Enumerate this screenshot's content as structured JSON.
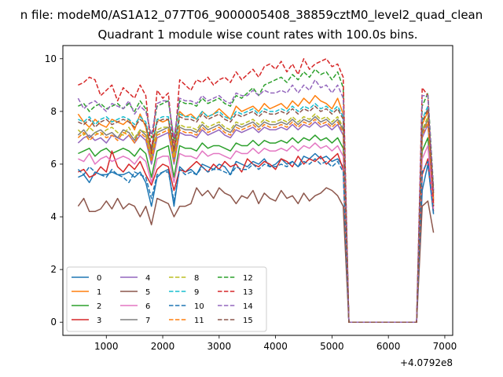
{
  "suptitle": "n file: modeM0/AS1A12_077T06_9000005408_38859cztM0_level2_quad_clean",
  "chart_data": {
    "type": "line",
    "title": "Quadrant 1 module wise count rates with 100.0s bins.",
    "xlabel": "",
    "ylabel": "",
    "x_offset_label": "+4.0792e8",
    "xlim": [
      230,
      7140
    ],
    "ylim": [
      -0.5,
      10.5
    ],
    "x_ticks": [
      1000,
      2000,
      3000,
      4000,
      5000,
      6000,
      7000
    ],
    "x_tick_labels": [
      "1000",
      "2000",
      "3000",
      "4000",
      "5000",
      "6000",
      "7000"
    ],
    "y_ticks": [
      0,
      2,
      4,
      6,
      8,
      10
    ],
    "y_tick_labels": [
      "0",
      "2",
      "4",
      "6",
      "8",
      "10"
    ],
    "grid": false,
    "legend_position": "lower-left",
    "legend_columns": 4,
    "x": [
      500,
      600,
      700,
      800,
      900,
      1000,
      1100,
      1200,
      1300,
      1400,
      1500,
      1600,
      1700,
      1800,
      1900,
      2000,
      2100,
      2200,
      2300,
      2400,
      2500,
      2600,
      2700,
      2800,
      2900,
      3000,
      3100,
      3200,
      3300,
      3400,
      3500,
      3600,
      3700,
      3800,
      3900,
      4000,
      4100,
      4200,
      4300,
      4400,
      4500,
      4600,
      4700,
      4800,
      4900,
      5000,
      5100,
      5200,
      5300,
      5400,
      5500,
      5600,
      5700,
      5800,
      5900,
      6000,
      6100,
      6200,
      6300,
      6400,
      6500,
      6600,
      6700,
      6800
    ],
    "series": [
      {
        "name": "0",
        "color": "#1f77b4",
        "dash": "solid",
        "values": [
          5.5,
          5.6,
          5.3,
          5.7,
          5.6,
          5.6,
          5.7,
          5.6,
          5.6,
          5.7,
          5.5,
          5.7,
          5.3,
          4.4,
          5.5,
          5.7,
          5.8,
          4.4,
          5.9,
          5.7,
          5.8,
          5.6,
          6.0,
          5.9,
          5.8,
          6.0,
          5.9,
          5.6,
          6.1,
          6.0,
          5.9,
          6.1,
          6.0,
          6.2,
          5.9,
          6.0,
          6.2,
          6.0,
          6.1,
          5.9,
          6.3,
          6.2,
          6.4,
          6.2,
          6.3,
          6.1,
          6.2,
          5.9,
          0,
          0,
          0,
          0,
          0,
          0,
          0,
          0,
          0,
          0,
          0,
          0,
          0,
          5.0,
          6.0,
          4.1
        ]
      },
      {
        "name": "1",
        "color": "#ff7f0e",
        "dash": "solid",
        "values": [
          7.9,
          7.6,
          7.4,
          7.7,
          7.5,
          7.4,
          7.7,
          7.6,
          7.5,
          7.7,
          7.3,
          7.9,
          7.4,
          6.4,
          7.7,
          7.6,
          7.7,
          6.4,
          8.0,
          7.8,
          7.9,
          7.7,
          8.0,
          7.8,
          7.9,
          8.1,
          7.9,
          7.7,
          8.2,
          8.0,
          8.1,
          8.2,
          8.0,
          8.3,
          8.1,
          8.2,
          8.3,
          8.1,
          8.4,
          8.2,
          8.5,
          8.3,
          8.6,
          8.4,
          8.3,
          8.1,
          8.5,
          7.9,
          0,
          0,
          0,
          0,
          0,
          0,
          0,
          0,
          0,
          0,
          0,
          0,
          0,
          7.5,
          8.0,
          4.5
        ]
      },
      {
        "name": "2",
        "color": "#2ca02c",
        "dash": "solid",
        "values": [
          6.4,
          6.5,
          6.6,
          6.3,
          6.5,
          6.6,
          6.4,
          6.5,
          6.6,
          6.5,
          6.3,
          6.6,
          6.4,
          5.5,
          6.5,
          6.6,
          6.7,
          5.5,
          6.7,
          6.6,
          6.6,
          6.5,
          6.8,
          6.6,
          6.7,
          6.7,
          6.6,
          6.5,
          6.8,
          6.7,
          6.7,
          6.9,
          6.7,
          6.9,
          6.8,
          6.8,
          6.9,
          6.8,
          7.0,
          6.8,
          7.0,
          6.9,
          7.1,
          6.9,
          7.0,
          6.8,
          7.0,
          6.6,
          0,
          0,
          0,
          0,
          0,
          0,
          0,
          0,
          0,
          0,
          0,
          0,
          0,
          6.5,
          7.0,
          4.4
        ]
      },
      {
        "name": "3",
        "color": "#d62728",
        "dash": "solid",
        "values": [
          5.7,
          5.8,
          5.5,
          5.6,
          5.9,
          5.7,
          6.5,
          5.9,
          5.7,
          6.0,
          5.8,
          6.1,
          5.6,
          5.2,
          5.8,
          6.0,
          5.9,
          5.0,
          5.8,
          5.7,
          5.9,
          6.1,
          5.9,
          5.7,
          6.0,
          5.8,
          6.1,
          5.9,
          6.0,
          5.7,
          6.2,
          6.0,
          5.9,
          6.1,
          6.0,
          5.8,
          6.2,
          6.1,
          5.9,
          6.3,
          6.0,
          6.2,
          6.1,
          6.3,
          6.0,
          6.2,
          6.4,
          5.8,
          0,
          0,
          0,
          0,
          0,
          0,
          0,
          0,
          0,
          0,
          0,
          0,
          0,
          5.6,
          6.2,
          4.2
        ]
      },
      {
        "name": "4",
        "color": "#9467bd",
        "dash": "solid",
        "values": [
          6.8,
          7.0,
          7.1,
          6.9,
          7.0,
          6.8,
          7.1,
          7.0,
          6.9,
          7.1,
          6.8,
          7.1,
          6.9,
          6.0,
          7.0,
          7.1,
          7.2,
          6.0,
          7.2,
          7.1,
          7.1,
          7.0,
          7.3,
          7.1,
          7.2,
          7.3,
          7.1,
          7.0,
          7.3,
          7.2,
          7.3,
          7.4,
          7.2,
          7.4,
          7.3,
          7.3,
          7.4,
          7.3,
          7.5,
          7.3,
          7.5,
          7.4,
          7.6,
          7.4,
          7.5,
          7.3,
          7.5,
          7.1,
          0,
          0,
          0,
          0,
          0,
          0,
          0,
          0,
          0,
          0,
          0,
          0,
          0,
          7.0,
          7.5,
          4.6
        ]
      },
      {
        "name": "5",
        "color": "#8c564b",
        "dash": "solid",
        "values": [
          4.4,
          4.7,
          4.2,
          4.2,
          4.3,
          4.6,
          4.3,
          4.7,
          4.3,
          4.5,
          4.4,
          4.0,
          4.4,
          3.7,
          4.7,
          4.6,
          4.5,
          4.0,
          4.4,
          4.4,
          4.5,
          5.1,
          4.8,
          5.0,
          4.7,
          5.1,
          4.9,
          4.8,
          4.5,
          4.8,
          4.7,
          5.0,
          4.5,
          4.9,
          4.7,
          4.6,
          5.0,
          4.7,
          4.8,
          4.5,
          4.9,
          4.6,
          4.8,
          4.9,
          5.1,
          5.0,
          4.8,
          4.4,
          0,
          0,
          0,
          0,
          0,
          0,
          0,
          0,
          0,
          0,
          0,
          0,
          0,
          4.4,
          4.6,
          3.4
        ]
      },
      {
        "name": "6",
        "color": "#e377c2",
        "dash": "solid",
        "values": [
          6.2,
          6.1,
          6.4,
          6.0,
          6.2,
          6.3,
          6.1,
          6.2,
          6.3,
          6.2,
          6.0,
          6.3,
          6.1,
          5.3,
          6.2,
          6.3,
          6.3,
          5.3,
          6.4,
          6.3,
          6.3,
          6.2,
          6.5,
          6.3,
          6.4,
          6.4,
          6.3,
          6.2,
          6.5,
          6.4,
          6.4,
          6.6,
          6.4,
          6.6,
          6.5,
          6.5,
          6.6,
          6.5,
          6.7,
          6.5,
          6.7,
          6.6,
          6.8,
          6.6,
          6.7,
          6.5,
          6.7,
          6.3,
          0,
          0,
          0,
          0,
          0,
          0,
          0,
          0,
          0,
          0,
          0,
          0,
          0,
          6.2,
          6.7,
          4.3
        ]
      },
      {
        "name": "7",
        "color": "#7f7f7f",
        "dash": "solid",
        "values": [
          7.1,
          7.3,
          7.0,
          7.2,
          7.3,
          7.1,
          7.2,
          7.0,
          7.3,
          7.2,
          6.9,
          7.3,
          7.1,
          6.2,
          7.2,
          7.3,
          7.4,
          6.2,
          7.4,
          7.3,
          7.3,
          7.2,
          7.5,
          7.3,
          7.4,
          7.5,
          7.3,
          7.2,
          7.5,
          7.4,
          7.5,
          7.6,
          7.4,
          7.6,
          7.5,
          7.5,
          7.6,
          7.5,
          7.7,
          7.5,
          7.7,
          7.6,
          7.8,
          7.6,
          7.7,
          7.5,
          7.7,
          7.3,
          0,
          0,
          0,
          0,
          0,
          0,
          0,
          0,
          0,
          0,
          0,
          0,
          0,
          7.2,
          7.7,
          4.7
        ]
      },
      {
        "name": "8",
        "color": "#bcbd22",
        "dash": "dashed",
        "values": [
          7.3,
          7.1,
          7.4,
          7.2,
          7.1,
          7.3,
          7.4,
          7.2,
          7.1,
          7.4,
          7.0,
          7.3,
          7.2,
          6.3,
          7.3,
          7.4,
          7.4,
          6.3,
          7.5,
          7.4,
          7.4,
          7.3,
          7.6,
          7.4,
          7.5,
          7.6,
          7.4,
          7.3,
          7.6,
          7.5,
          7.6,
          7.7,
          7.5,
          7.7,
          7.6,
          7.6,
          7.7,
          7.6,
          7.8,
          7.6,
          7.8,
          7.7,
          7.9,
          7.7,
          7.8,
          7.6,
          7.8,
          7.4,
          0,
          0,
          0,
          0,
          0,
          0,
          0,
          0,
          0,
          0,
          0,
          0,
          0,
          7.3,
          7.8,
          4.8
        ]
      },
      {
        "name": "9",
        "color": "#17becf",
        "dash": "dashed",
        "values": [
          7.7,
          7.6,
          7.8,
          7.5,
          7.7,
          7.8,
          7.6,
          7.7,
          7.8,
          7.7,
          7.5,
          7.8,
          7.6,
          6.6,
          7.7,
          7.8,
          7.8,
          6.6,
          7.9,
          7.8,
          7.8,
          7.7,
          8.0,
          7.8,
          7.9,
          8.0,
          7.8,
          7.7,
          8.0,
          7.9,
          8.0,
          8.1,
          7.9,
          8.1,
          8.0,
          8.0,
          8.1,
          8.0,
          8.2,
          8.0,
          8.2,
          8.1,
          8.3,
          8.1,
          8.2,
          8.0,
          8.2,
          7.8,
          0,
          0,
          0,
          0,
          0,
          0,
          0,
          0,
          0,
          0,
          0,
          0,
          0,
          7.7,
          8.2,
          5.0
        ]
      },
      {
        "name": "10",
        "color": "#1f77b4",
        "dash": "dashed",
        "values": [
          5.8,
          5.6,
          5.9,
          5.7,
          5.6,
          5.5,
          5.8,
          5.6,
          5.5,
          5.3,
          5.7,
          5.6,
          5.5,
          4.7,
          5.6,
          5.7,
          5.7,
          4.6,
          5.8,
          5.6,
          5.7,
          5.6,
          5.9,
          5.7,
          5.8,
          5.8,
          5.7,
          5.6,
          5.9,
          5.8,
          5.8,
          6.0,
          5.8,
          6.0,
          5.9,
          5.9,
          6.0,
          5.9,
          6.1,
          5.9,
          6.1,
          6.0,
          6.2,
          6.0,
          6.1,
          5.9,
          6.1,
          5.7,
          0,
          0,
          0,
          0,
          0,
          0,
          0,
          0,
          0,
          0,
          0,
          0,
          0,
          5.7,
          6.1,
          4.1
        ]
      },
      {
        "name": "11",
        "color": "#ff7f0e",
        "dash": "dashed",
        "values": [
          7.0,
          7.2,
          6.9,
          7.1,
          7.2,
          7.0,
          7.1,
          6.9,
          7.2,
          7.1,
          6.8,
          7.2,
          7.0,
          6.1,
          7.1,
          7.2,
          7.3,
          6.1,
          7.3,
          7.2,
          7.2,
          7.1,
          7.4,
          7.2,
          7.3,
          7.4,
          7.2,
          7.1,
          7.4,
          7.3,
          7.4,
          7.5,
          7.3,
          7.5,
          7.4,
          7.4,
          7.5,
          7.4,
          7.6,
          7.4,
          7.6,
          7.5,
          7.7,
          7.5,
          7.6,
          7.4,
          7.6,
          7.2,
          0,
          0,
          0,
          0,
          0,
          0,
          0,
          0,
          0,
          0,
          0,
          0,
          0,
          7.1,
          7.6,
          4.6
        ]
      },
      {
        "name": "12",
        "color": "#2ca02c",
        "dash": "dashed",
        "values": [
          8.2,
          8.3,
          8.0,
          8.2,
          8.3,
          8.1,
          8.2,
          8.3,
          8.1,
          8.3,
          8.0,
          8.4,
          8.1,
          7.0,
          8.2,
          8.3,
          8.4,
          6.9,
          8.4,
          8.3,
          8.3,
          8.2,
          8.5,
          8.3,
          8.4,
          8.5,
          8.3,
          8.2,
          8.6,
          8.5,
          8.7,
          8.9,
          8.6,
          9.0,
          9.1,
          9.2,
          9.3,
          9.1,
          9.4,
          9.2,
          9.5,
          9.3,
          9.6,
          9.4,
          9.5,
          9.2,
          9.5,
          8.9,
          0,
          0,
          0,
          0,
          0,
          0,
          0,
          0,
          0,
          0,
          0,
          0,
          0,
          8.2,
          8.7,
          5.1
        ]
      },
      {
        "name": "13",
        "color": "#d62728",
        "dash": "dashed",
        "values": [
          9.0,
          9.1,
          9.3,
          9.2,
          8.6,
          8.8,
          9.0,
          8.4,
          8.9,
          8.7,
          8.5,
          9.0,
          8.6,
          6.4,
          8.8,
          8.5,
          8.7,
          6.5,
          9.2,
          9.0,
          8.8,
          9.2,
          9.1,
          9.3,
          9.0,
          9.2,
          9.3,
          9.1,
          9.5,
          9.2,
          9.4,
          9.6,
          9.3,
          9.7,
          9.8,
          9.6,
          9.9,
          9.5,
          9.8,
          9.4,
          10.0,
          9.6,
          9.8,
          9.9,
          10.0,
          9.7,
          9.8,
          9.3,
          0,
          0,
          0,
          0,
          0,
          0,
          0,
          0,
          0,
          0,
          0,
          0,
          0,
          8.9,
          8.6,
          4.4
        ]
      },
      {
        "name": "14",
        "color": "#9467bd",
        "dash": "dashed",
        "values": [
          8.5,
          8.1,
          8.3,
          8.4,
          8.2,
          8.0,
          8.3,
          8.2,
          8.1,
          8.4,
          7.9,
          8.2,
          8.0,
          7.1,
          8.3,
          8.4,
          8.4,
          7.0,
          8.5,
          8.4,
          8.4,
          8.3,
          8.6,
          8.4,
          8.5,
          8.6,
          8.4,
          8.3,
          8.7,
          8.6,
          8.6,
          8.8,
          8.6,
          8.8,
          8.7,
          8.7,
          8.8,
          8.7,
          9.0,
          8.7,
          9.0,
          8.8,
          9.2,
          8.9,
          9.0,
          8.7,
          9.0,
          8.5,
          0,
          0,
          0,
          0,
          0,
          0,
          0,
          0,
          0,
          0,
          0,
          0,
          0,
          8.6,
          8.6,
          5.0
        ]
      },
      {
        "name": "15",
        "color": "#8c564b",
        "dash": "dashed",
        "values": [
          7.6,
          7.5,
          7.7,
          7.4,
          7.6,
          7.7,
          7.5,
          7.6,
          7.7,
          7.6,
          7.4,
          7.7,
          7.5,
          6.5,
          7.6,
          7.7,
          7.7,
          6.5,
          7.8,
          7.7,
          7.7,
          7.6,
          7.9,
          7.7,
          7.8,
          7.9,
          7.7,
          7.6,
          7.9,
          7.8,
          7.9,
          8.0,
          7.8,
          8.0,
          7.9,
          7.9,
          8.0,
          7.9,
          8.1,
          7.9,
          8.1,
          8.0,
          8.2,
          8.0,
          8.1,
          7.9,
          8.1,
          7.7,
          0,
          0,
          0,
          0,
          0,
          0,
          0,
          0,
          0,
          0,
          0,
          0,
          0,
          7.6,
          8.1,
          4.9
        ]
      }
    ]
  }
}
